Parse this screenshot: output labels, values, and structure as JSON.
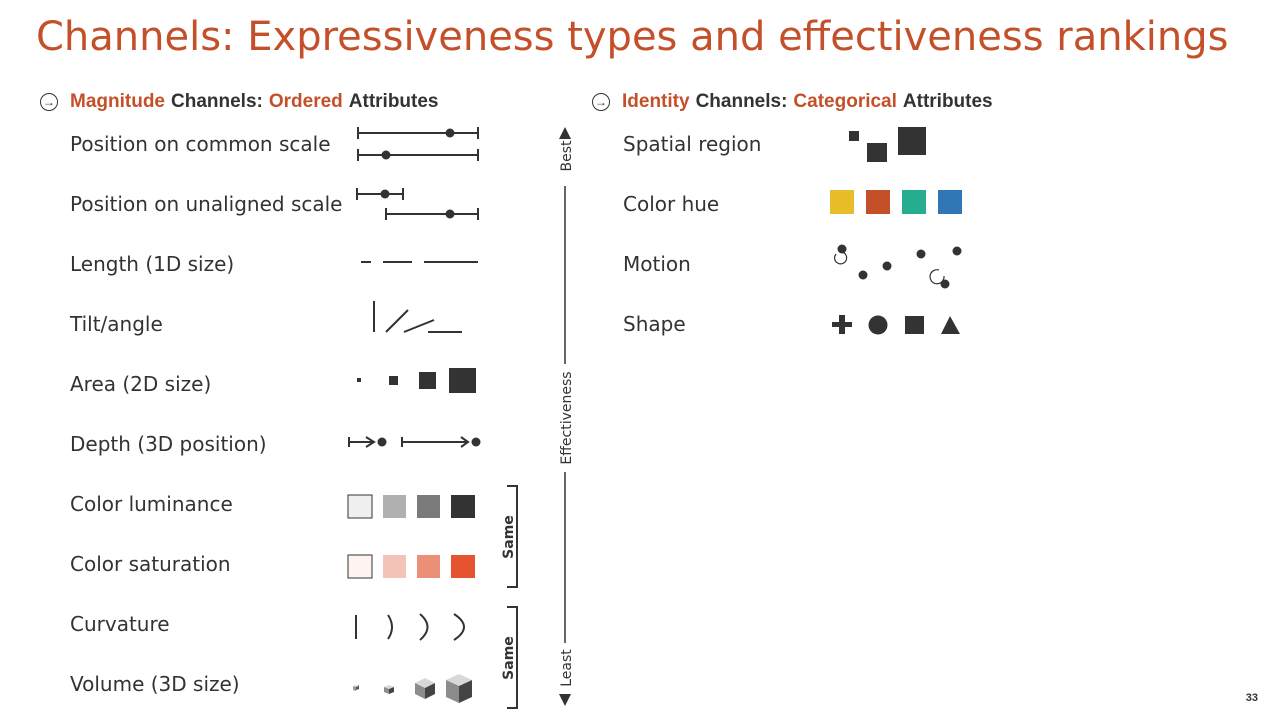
{
  "title": "Channels: Expressiveness types and effectiveness rankings",
  "magnitude_header": {
    "part1": "Magnitude",
    "part2": "Channels:",
    "part3": "Ordered",
    "part4": "Attributes"
  },
  "identity_header": {
    "part1": "Identity",
    "part2": "Channels:",
    "part3": "Categorical",
    "part4": "Attributes"
  },
  "magnitude_rows": [
    {
      "label": "Position on common scale"
    },
    {
      "label": "Position on unaligned scale"
    },
    {
      "label": "Length (1D size)"
    },
    {
      "label": "Tilt/angle"
    },
    {
      "label": "Area (2D size)"
    },
    {
      "label": "Depth (3D position)"
    },
    {
      "label": "Color luminance"
    },
    {
      "label": "Color saturation"
    },
    {
      "label": "Curvature"
    },
    {
      "label": "Volume (3D size)"
    }
  ],
  "identity_rows": [
    {
      "label": "Spatial region"
    },
    {
      "label": "Color hue"
    },
    {
      "label": "Motion"
    },
    {
      "label": "Shape"
    }
  ],
  "scale": {
    "best": "Best",
    "effectiveness": "Effectiveness",
    "least": "Least"
  },
  "brackets": {
    "same1": "Same",
    "same2": "Same"
  },
  "colors": {
    "accent": "#c4502a",
    "luminance": [
      "#efefef",
      "#b0b0b0",
      "#7a7a7a",
      "#333333"
    ],
    "saturation": [
      "#fdf4f2",
      "#f4c3b7",
      "#ec8f77",
      "#e5532f"
    ],
    "hue": [
      "#e9bd2a",
      "#c4502a",
      "#26ad8f",
      "#2e77b4"
    ]
  },
  "page_number": "33"
}
